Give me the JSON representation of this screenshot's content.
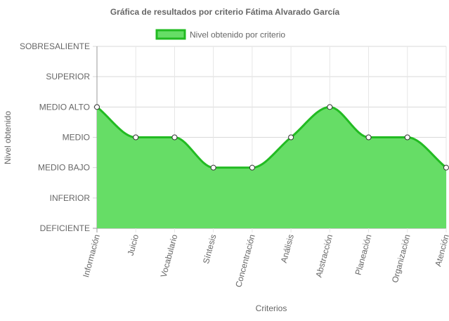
{
  "chart_data": {
    "type": "area",
    "title": "Gráfica de resultados por criterio Fátima Alvarado García",
    "xlabel": "Criterios",
    "ylabel": "Nivel obtenido",
    "levels": [
      "DEFICIENTE",
      "INFERIOR",
      "MEDIO BAJO",
      "MEDIO",
      "MEDIO ALTO",
      "SUPERIOR",
      "SOBRESALIENTE"
    ],
    "ylim": [
      0,
      6
    ],
    "categories": [
      "Información",
      "Juicio",
      "Vocabulario",
      "Síntesis",
      "Concentración",
      "Análisis",
      "Abstracción",
      "Planeación",
      "Organización",
      "Atención"
    ],
    "series": [
      {
        "name": "Nivel obtenido por criterio",
        "values": [
          4,
          3,
          3,
          2,
          2,
          3,
          4,
          3,
          3,
          2
        ],
        "color": "#22bb22",
        "fill": "#66dd66"
      }
    ],
    "grid": true,
    "legend_position": "top"
  }
}
